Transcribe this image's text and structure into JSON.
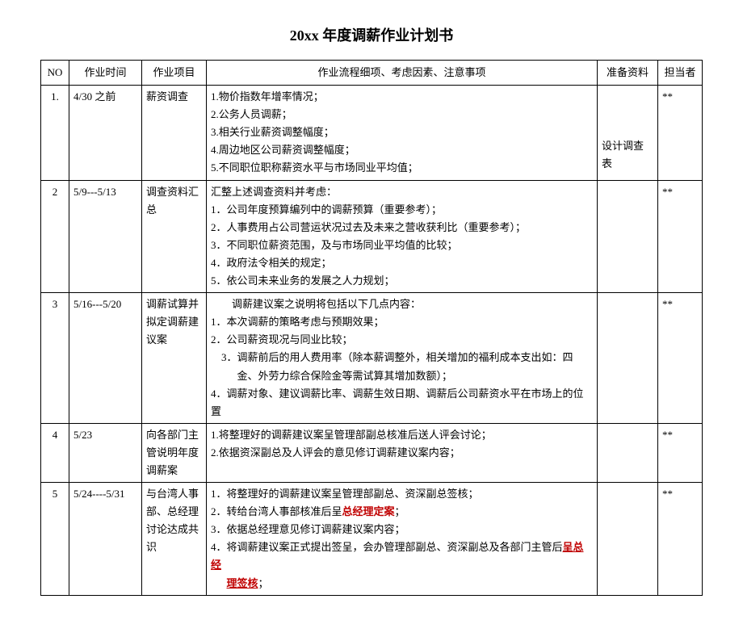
{
  "title": "20xx 年度调薪作业计划书",
  "headers": {
    "no": "NO",
    "time": "作业时间",
    "project": "作业项目",
    "detail": "作业流程细项、考虑因素、注意事项",
    "material": "准备资料",
    "owner": "担当者"
  },
  "rows": [
    {
      "no": "1.",
      "time": "4/30 之前",
      "project": "薪资调查",
      "details": [
        "1.物价指数年增率情况；",
        "2.公务人员调薪；",
        "3.相关行业薪资调整幅度；",
        "4.周边地区公司薪资调整幅度；",
        "5.不同职位职称薪资水平与市场同业平均值；"
      ],
      "material": "设计调查表",
      "owner": "**"
    },
    {
      "no": "2",
      "time": "5/9---5/13",
      "project": "调查资料汇总",
      "details": [
        "汇整上述调查资料并考虑：",
        "1．公司年度预算编列中的调薪预算（重要参考）；",
        "2．人事费用占公司营运状况过去及未来之营收获利比（重要参考）；",
        "3．不同职位薪资范围，及与市场同业平均值的比较；",
        "4．政府法令相关的规定；",
        "5．依公司未来业务的发展之人力规划；"
      ],
      "material": "",
      "owner": "**"
    },
    {
      "no": "3",
      "time": "5/16---5/20",
      "project": "调薪试算并拟定调薪建议案",
      "intro": "　　调薪建议案之说明将包括以下几点内容：",
      "details": [
        "1．本次调薪的策略考虑与预期效果；",
        "2．公司薪资现况与同业比较；",
        "3．调薪前后的用人费用率（除本薪调整外，相关增加的福利成本支出如：四金、外劳力综合保险金等需试算其增加数额）；",
        "4．调薪对象、建议调薪比率、调薪生效日期、调薪后公司薪资水平在市场上的位置"
      ],
      "material": "",
      "owner": "**"
    },
    {
      "no": "4",
      "time": "5/23",
      "project": "向各部门主管说明年度调薪案",
      "details": [
        "1.将整理好的调薪建议案呈管理部副总核准后送人评会讨论；",
        "2.依据资深副总及人评会的意见修订调薪建议案内容；"
      ],
      "material": "",
      "owner": "**"
    },
    {
      "no": "5",
      "time": "5/24----5/31",
      "project": "与台湾人事部、总经理讨论达成共识",
      "row5": {
        "line1_prefix": "1．将整理好的调薪建议案呈管理部副总、资深副总签核；",
        "line2_prefix": "2．转给台湾人事部核准后呈",
        "line2_highlight": "总经理定案",
        "line2_suffix": "；",
        "line3": "3．依据总经理意见修订调薪建议案内容；",
        "line4_prefix": "4．将调薪建议案正式提出签呈，会办管理部副总、资深副总及各部门主管后",
        "line4_highlight1": "呈总经",
        "line4_highlight2": "理签核",
        "line4_suffix": "；"
      },
      "material": "",
      "owner": "**"
    }
  ]
}
